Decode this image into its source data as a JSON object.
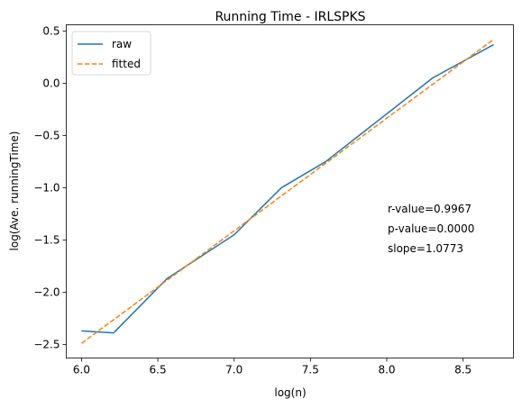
{
  "chart_data": {
    "type": "line",
    "title": "Running Time - IRLSPKS",
    "xlabel": "log(n)",
    "ylabel": "log(Ave. runningTime)",
    "xlim": [
      5.9,
      8.83
    ],
    "ylim": [
      -2.63,
      0.56
    ],
    "xticks": [
      6.0,
      6.5,
      7.0,
      7.5,
      8.0,
      8.5
    ],
    "xtick_labels": [
      "6.0",
      "6.5",
      "7.0",
      "7.5",
      "8.0",
      "8.5"
    ],
    "yticks": [
      -2.5,
      -2.0,
      -1.5,
      -1.0,
      -0.5,
      0.0,
      0.5
    ],
    "ytick_labels": [
      "−2.5",
      "−2.0",
      "−1.5",
      "−1.0",
      "−0.5",
      "0.0",
      "0.5"
    ],
    "grid": false,
    "legend_position": "top-left",
    "series": [
      {
        "name": "raw",
        "style": "solid",
        "color": "#1f77b4",
        "x": [
          6.0,
          6.21,
          6.56,
          7.0,
          7.31,
          7.6,
          8.3,
          8.7
        ],
        "y": [
          -2.37,
          -2.39,
          -1.87,
          -1.45,
          -1.0,
          -0.75,
          0.05,
          0.37
        ]
      },
      {
        "name": "fitted",
        "style": "dashed",
        "color": "#ff7f0e",
        "x": [
          6.0,
          8.7
        ],
        "y": [
          -2.49,
          0.42
        ]
      }
    ],
    "annotations": [
      "r-value=0.9967",
      "p-value=0.0000",
      "slope=1.0773"
    ]
  }
}
